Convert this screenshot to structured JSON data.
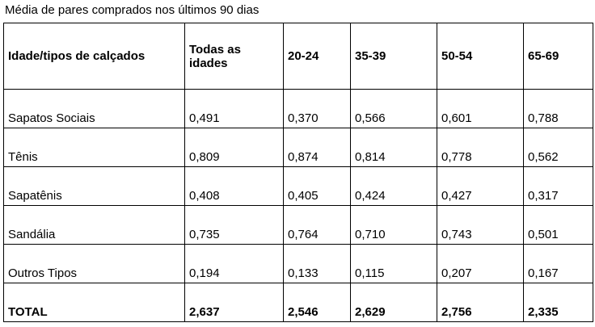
{
  "header": {
    "title": "Média de pares comprados nos últimos 90 dias"
  },
  "table": {
    "columns": [
      "Idade/tipos de calçados",
      "Todas as idades",
      "20-24",
      "35-39",
      "50-54",
      "65-69"
    ],
    "rows": [
      [
        "Sapatos Sociais",
        "0,491",
        "0,370",
        "0,566",
        "0,601",
        "0,788"
      ],
      [
        "Tênis",
        "0,809",
        "0,874",
        "0,814",
        "0,778",
        "0,562"
      ],
      [
        "Sapatênis",
        "0,408",
        "0,405",
        "0,424",
        "0,427",
        "0,317"
      ],
      [
        "Sandália",
        "0,735",
        "0,764",
        "0,710",
        "0,743",
        "0,501"
      ],
      [
        "Outros Tipos",
        "0,194",
        "0,133",
        "0,115",
        "0,207",
        "0,167"
      ],
      [
        "TOTAL",
        "2,637",
        "2,546",
        "2,629",
        "2,756",
        "2,335"
      ]
    ]
  }
}
